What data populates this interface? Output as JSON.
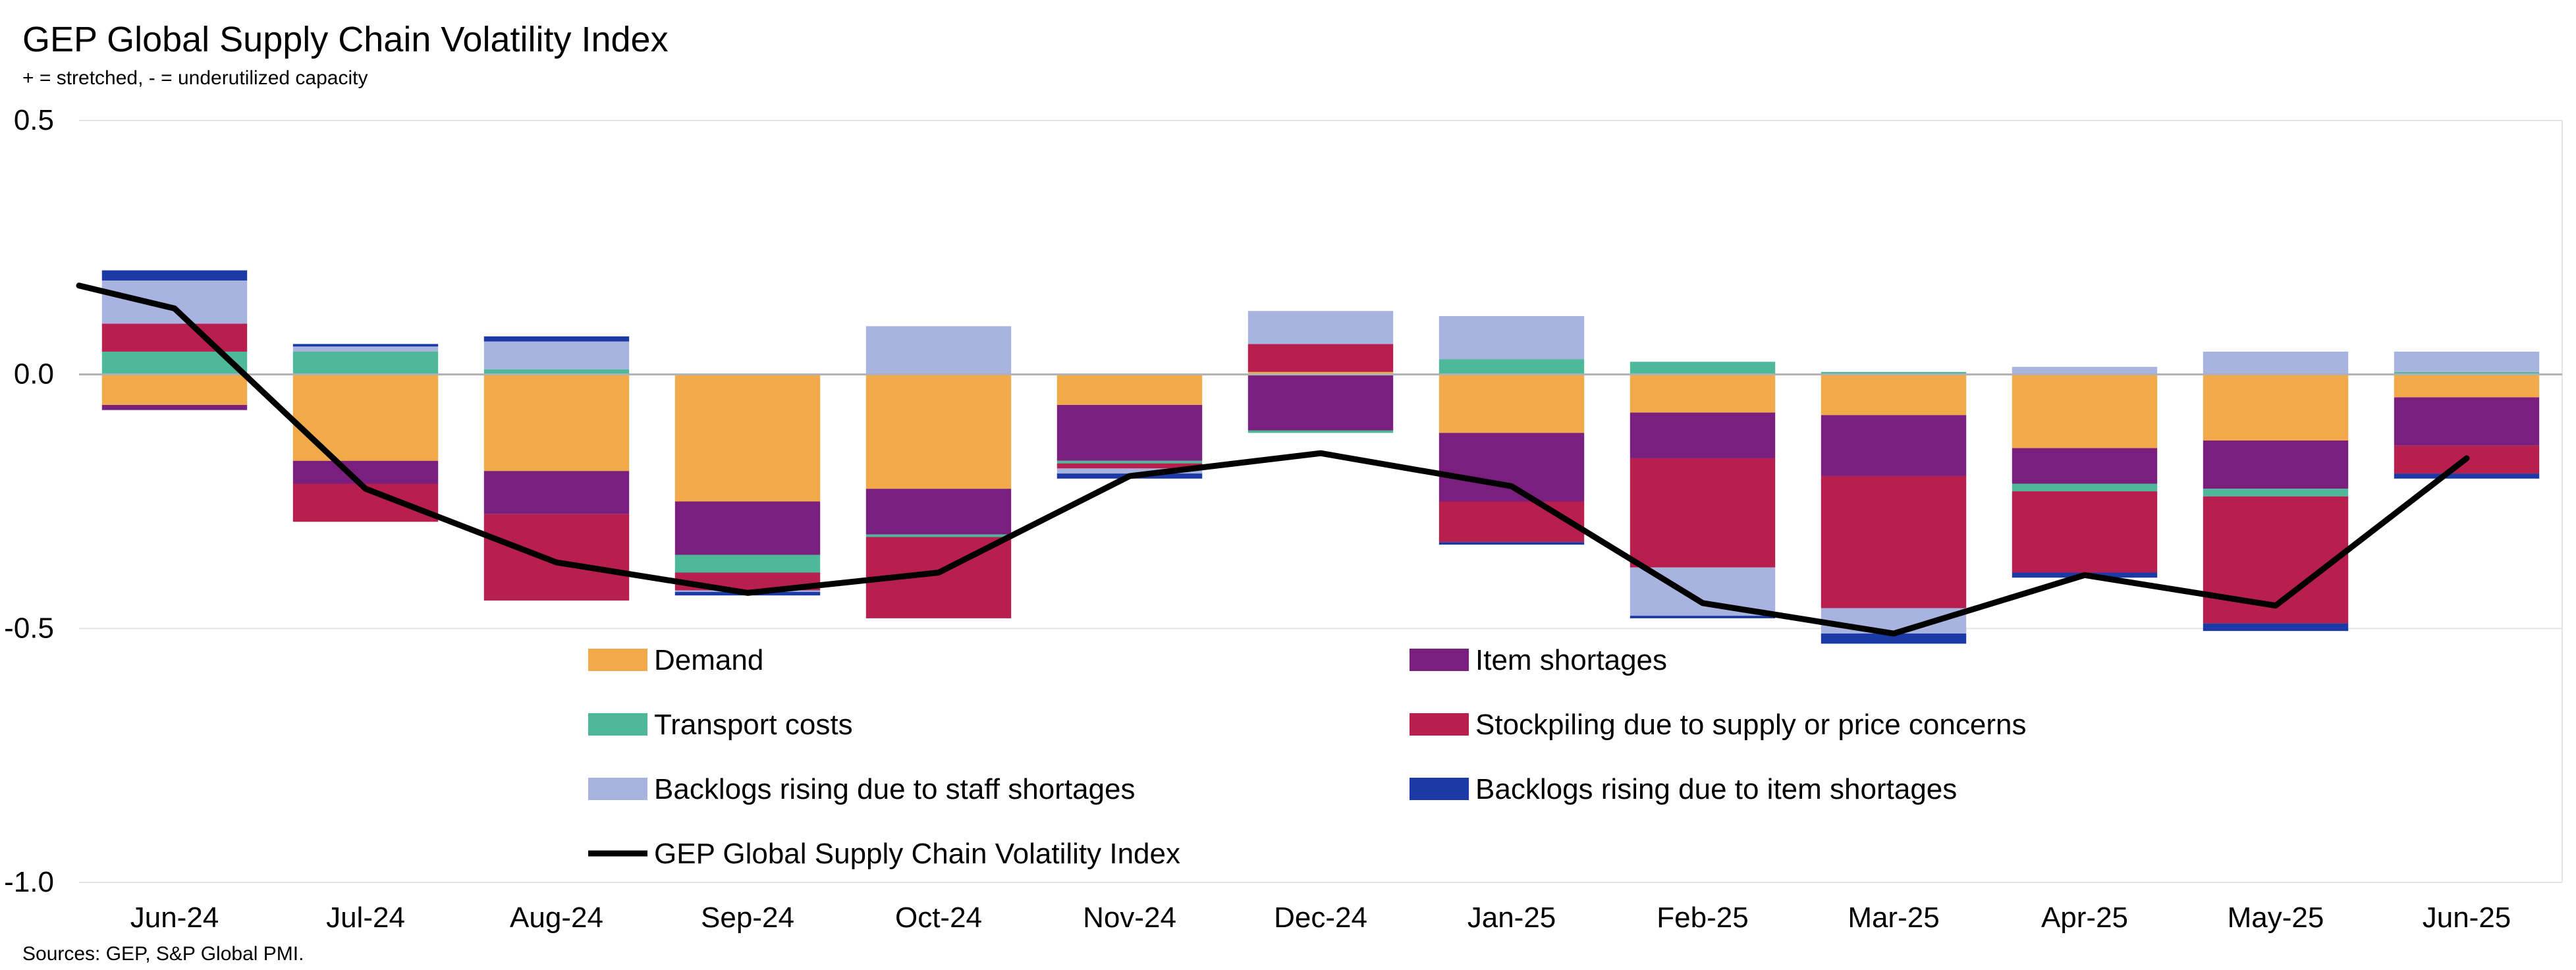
{
  "chart_data": {
    "type": "bar",
    "title": "GEP Global Supply Chain Volatility Index",
    "subtitle": "+ = stretched, - = underutilized capacity",
    "source": "Sources: GEP, S&P Global PMI.",
    "categories": [
      "Jun-24",
      "Jul-24",
      "Aug-24",
      "Sep-24",
      "Oct-24",
      "Nov-24",
      "Dec-24",
      "Jan-25",
      "Feb-25",
      "Mar-25",
      "Apr-25",
      "May-25",
      "Jun-25"
    ],
    "ylim": [
      -1.0,
      0.5
    ],
    "yticks": [
      {
        "value": 0.5,
        "label": "0.5"
      },
      {
        "value": 0.0,
        "label": "0.0"
      },
      {
        "value": -0.5,
        "label": "-0.5"
      },
      {
        "value": -1.0,
        "label": "-1.0"
      }
    ],
    "grid": true,
    "stacked": true,
    "legend_position": "inside-bottom",
    "series": [
      {
        "name": "Demand",
        "color": "#F2A94A",
        "values": [
          -0.06,
          -0.17,
          -0.19,
          -0.25,
          -0.225,
          -0.06,
          0.005,
          -0.115,
          -0.075,
          -0.08,
          -0.145,
          -0.13,
          -0.045
        ]
      },
      {
        "name": "Item shortages",
        "color": "#7A1F7E",
        "values": [
          -0.01,
          -0.045,
          -0.085,
          -0.105,
          -0.09,
          -0.11,
          -0.11,
          -0.135,
          -0.09,
          -0.12,
          -0.07,
          -0.095,
          -0.095
        ]
      },
      {
        "name": "Transport costs",
        "color": "#4DB89A",
        "values": [
          0.045,
          0.045,
          0.01,
          -0.035,
          -0.005,
          -0.005,
          -0.005,
          0.03,
          0.025,
          0.005,
          -0.015,
          -0.015,
          0.005
        ]
      },
      {
        "name": "Stockpiling due to supply or price concerns",
        "color": "#B81E4E",
        "values": [
          0.055,
          -0.075,
          -0.17,
          -0.035,
          -0.16,
          -0.01,
          0.055,
          -0.08,
          -0.215,
          -0.26,
          -0.16,
          -0.25,
          -0.055
        ]
      },
      {
        "name": "Backlogs rising due to staff shortages",
        "color": "#A8B3E0",
        "values": [
          0.085,
          0.01,
          0.055,
          -0.003,
          0.095,
          -0.01,
          0.065,
          0.085,
          -0.095,
          -0.05,
          0.015,
          0.045,
          0.04
        ]
      },
      {
        "name": "Backlogs rising due to item shortages",
        "color": "#1C3AA6",
        "values": [
          0.02,
          0.005,
          0.01,
          -0.007,
          0.0,
          -0.01,
          0.0,
          -0.005,
          -0.005,
          -0.02,
          -0.01,
          -0.015,
          -0.01
        ]
      }
    ],
    "line": {
      "name": "GEP Global Supply Chain Volatility Index",
      "color": "#000000",
      "values": [
        0.13,
        -0.225,
        -0.37,
        -0.43,
        -0.39,
        -0.2,
        -0.155,
        -0.22,
        -0.45,
        -0.51,
        -0.395,
        -0.455,
        -0.165
      ],
      "left_edge_value": 0.175
    }
  }
}
